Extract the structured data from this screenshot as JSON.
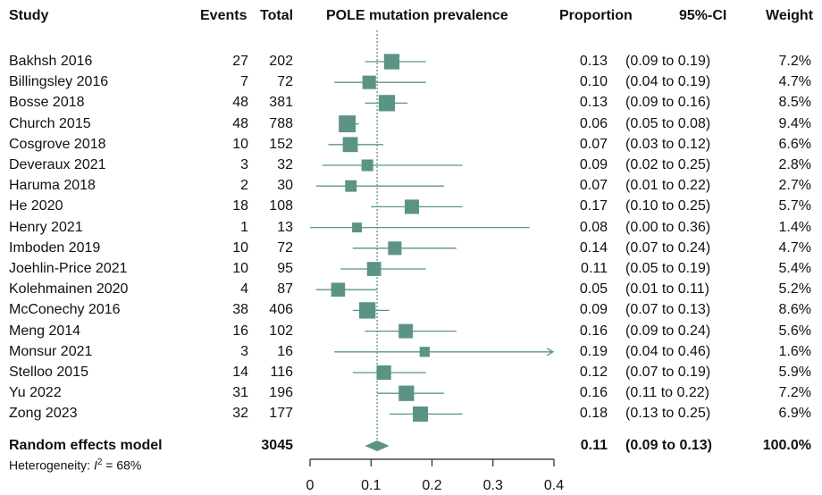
{
  "headers": {
    "study": "Study",
    "events": "Events",
    "total": "Total",
    "plot": "POLE mutation prevalence",
    "proportion": "Proportion",
    "ci": "95%-CI",
    "weight": "Weight"
  },
  "rows": [
    {
      "study": "Bakhsh 2016",
      "events": "27",
      "total": "202",
      "proportion": "0.13",
      "ci": "(0.09 to 0.19)",
      "weight": "7.2%"
    },
    {
      "study": "Billingsley  2016",
      "events": "7",
      "total": "72",
      "proportion": "0.10",
      "ci": "(0.04 to 0.19)",
      "weight": "4.7%"
    },
    {
      "study": "Bosse 2018",
      "events": "48",
      "total": "381",
      "proportion": "0.13",
      "ci": "(0.09 to 0.16)",
      "weight": "8.5%"
    },
    {
      "study": "Church 2015",
      "events": "48",
      "total": "788",
      "proportion": "0.06",
      "ci": "(0.05 to 0.08)",
      "weight": "9.4%"
    },
    {
      "study": "Cosgrove 2018",
      "events": "10",
      "total": "152",
      "proportion": "0.07",
      "ci": "(0.03 to 0.12)",
      "weight": "6.6%"
    },
    {
      "study": "Deveraux 2021",
      "events": "3",
      "total": "32",
      "proportion": "0.09",
      "ci": "(0.02 to 0.25)",
      "weight": "2.8%"
    },
    {
      "study": "Haruma 2018",
      "events": "2",
      "total": "30",
      "proportion": "0.07",
      "ci": "(0.01 to 0.22)",
      "weight": "2.7%"
    },
    {
      "study": "He 2020",
      "events": "18",
      "total": "108",
      "proportion": "0.17",
      "ci": "(0.10 to 0.25)",
      "weight": "5.7%"
    },
    {
      "study": "Henry 2021",
      "events": "1",
      "total": "13",
      "proportion": "0.08",
      "ci": "(0.00 to 0.36)",
      "weight": "1.4%"
    },
    {
      "study": "Imboden 2019",
      "events": "10",
      "total": "72",
      "proportion": "0.14",
      "ci": "(0.07 to 0.24)",
      "weight": "4.7%"
    },
    {
      "study": "Joehlin-Price 2021",
      "events": "10",
      "total": "95",
      "proportion": "0.11",
      "ci": "(0.05 to 0.19)",
      "weight": "5.4%"
    },
    {
      "study": "Kolehmainen 2020",
      "events": "4",
      "total": "87",
      "proportion": "0.05",
      "ci": "(0.01 to 0.11)",
      "weight": "5.2%"
    },
    {
      "study": "McConechy 2016",
      "events": "38",
      "total": "406",
      "proportion": "0.09",
      "ci": "(0.07 to 0.13)",
      "weight": "8.6%"
    },
    {
      "study": "Meng 2014",
      "events": "16",
      "total": "102",
      "proportion": "0.16",
      "ci": "(0.09 to 0.24)",
      "weight": "5.6%"
    },
    {
      "study": "Monsur 2021",
      "events": "3",
      "total": "16",
      "proportion": "0.19",
      "ci": "(0.04 to 0.46)",
      "weight": "1.6%"
    },
    {
      "study": "Stelloo 2015",
      "events": "14",
      "total": "116",
      "proportion": "0.12",
      "ci": "(0.07 to 0.19)",
      "weight": "5.9%"
    },
    {
      "study": "Yu 2022",
      "events": "31",
      "total": "196",
      "proportion": "0.16",
      "ci": "(0.11 to 0.22)",
      "weight": "7.2%"
    },
    {
      "study": "Zong  2023",
      "events": "32",
      "total": "177",
      "proportion": "0.18",
      "ci": "(0.13 to 0.25)",
      "weight": "6.9%"
    }
  ],
  "summary": {
    "label": "Random effects model",
    "total": "3045",
    "proportion": "0.11",
    "ci": "(0.09 to 0.13)",
    "weight": "100.0%"
  },
  "heterogeneity": {
    "prefix": "Heterogeneity: ",
    "symbol": "I",
    "superscript": "2",
    "suffix": " = 68%"
  },
  "chart_data": {
    "type": "forest",
    "title": "POLE mutation prevalence",
    "x_range": [
      0,
      0.4
    ],
    "ticks": [
      0,
      0.1,
      0.2,
      0.3,
      0.4
    ],
    "tick_labels": [
      "0",
      "0.1",
      "0.2",
      "0.3",
      "0.4"
    ],
    "reference_line": 0.11,
    "marker_color": "#5b9486",
    "line_color": "#5b9486",
    "points": [
      {
        "estimate": 0.134,
        "lower": 0.09,
        "upper": 0.19,
        "weight": 7.2
      },
      {
        "estimate": 0.097,
        "lower": 0.04,
        "upper": 0.19,
        "weight": 4.7
      },
      {
        "estimate": 0.126,
        "lower": 0.09,
        "upper": 0.16,
        "weight": 8.5
      },
      {
        "estimate": 0.061,
        "lower": 0.05,
        "upper": 0.08,
        "weight": 9.4
      },
      {
        "estimate": 0.066,
        "lower": 0.03,
        "upper": 0.12,
        "weight": 6.6
      },
      {
        "estimate": 0.094,
        "lower": 0.02,
        "upper": 0.25,
        "weight": 2.8
      },
      {
        "estimate": 0.067,
        "lower": 0.01,
        "upper": 0.22,
        "weight": 2.7
      },
      {
        "estimate": 0.167,
        "lower": 0.1,
        "upper": 0.25,
        "weight": 5.7
      },
      {
        "estimate": 0.077,
        "lower": 0.0,
        "upper": 0.36,
        "weight": 1.4
      },
      {
        "estimate": 0.139,
        "lower": 0.07,
        "upper": 0.24,
        "weight": 4.7
      },
      {
        "estimate": 0.105,
        "lower": 0.05,
        "upper": 0.19,
        "weight": 5.4
      },
      {
        "estimate": 0.046,
        "lower": 0.01,
        "upper": 0.11,
        "weight": 5.2
      },
      {
        "estimate": 0.094,
        "lower": 0.07,
        "upper": 0.13,
        "weight": 8.6
      },
      {
        "estimate": 0.157,
        "lower": 0.09,
        "upper": 0.24,
        "weight": 5.6
      },
      {
        "estimate": 0.188,
        "lower": 0.04,
        "upper": 0.46,
        "weight": 1.6
      },
      {
        "estimate": 0.121,
        "lower": 0.07,
        "upper": 0.19,
        "weight": 5.9
      },
      {
        "estimate": 0.158,
        "lower": 0.11,
        "upper": 0.22,
        "weight": 7.2
      },
      {
        "estimate": 0.181,
        "lower": 0.13,
        "upper": 0.25,
        "weight": 6.9
      }
    ],
    "pooled": {
      "estimate": 0.11,
      "lower": 0.09,
      "upper": 0.13
    }
  }
}
